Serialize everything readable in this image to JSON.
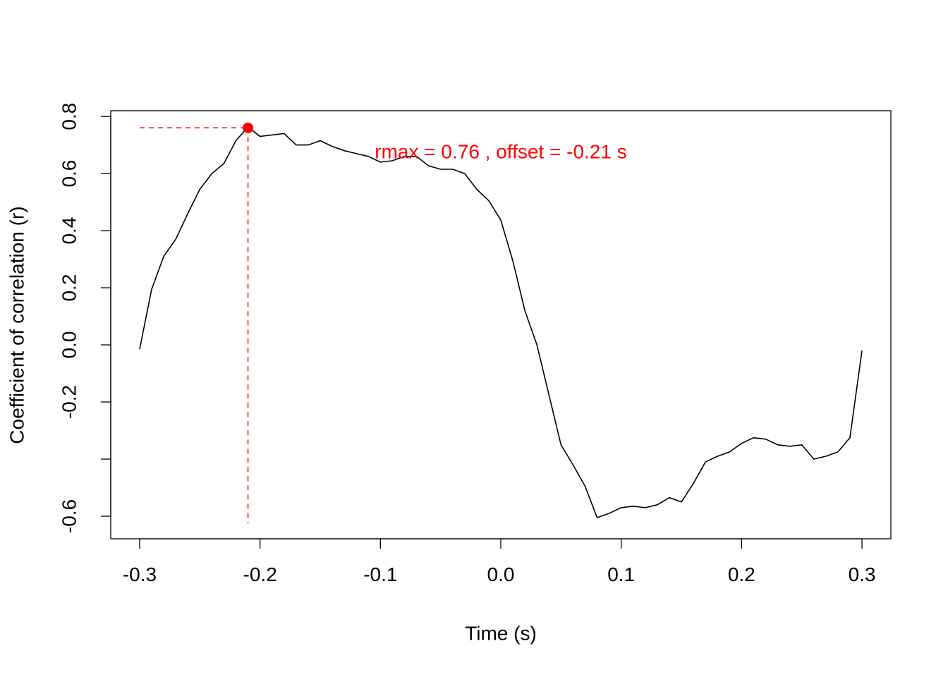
{
  "chart_data": {
    "type": "line",
    "x_label": "Time (s)",
    "y_label": "Coefficient of correlation (r)",
    "annotation": "rmax =  0.76 , offset =  -0.21 s",
    "color": "#000000",
    "highlight_color": "#ff0000",
    "peak": {
      "x": -0.21,
      "y": 0.76
    },
    "x": [
      -0.3,
      -0.29,
      -0.28,
      -0.27,
      -0.26,
      -0.25,
      -0.24,
      -0.23,
      -0.22,
      -0.21,
      -0.2,
      -0.19,
      -0.18,
      -0.17,
      -0.16,
      -0.15,
      -0.14,
      -0.13,
      -0.12,
      -0.11,
      -0.1,
      -0.09,
      -0.08,
      -0.07,
      -0.06,
      -0.05,
      -0.04,
      -0.03,
      -0.02,
      -0.01,
      0.0,
      0.01,
      0.02,
      0.03,
      0.04,
      0.05,
      0.06,
      0.07,
      0.08,
      0.09,
      0.1,
      0.11,
      0.12,
      0.13,
      0.14,
      0.15,
      0.16,
      0.17,
      0.18,
      0.19,
      0.2,
      0.21,
      0.22,
      0.23,
      0.24,
      0.25,
      0.26,
      0.27,
      0.28,
      0.29,
      0.3
    ],
    "values": [
      -0.015,
      0.195,
      0.31,
      0.37,
      0.46,
      0.545,
      0.6,
      0.635,
      0.715,
      0.763,
      0.73,
      0.735,
      0.74,
      0.7,
      0.7,
      0.715,
      0.695,
      0.68,
      0.67,
      0.66,
      0.64,
      0.645,
      0.66,
      0.66,
      0.627,
      0.615,
      0.615,
      0.6,
      0.545,
      0.505,
      0.437,
      0.294,
      0.12,
      0.0,
      -0.175,
      -0.35,
      -0.42,
      -0.495,
      -0.605,
      -0.59,
      -0.57,
      -0.565,
      -0.57,
      -0.56,
      -0.535,
      -0.55,
      -0.485,
      -0.41,
      -0.39,
      -0.375,
      -0.345,
      -0.325,
      -0.33,
      -0.35,
      -0.355,
      -0.35,
      -0.4,
      -0.39,
      -0.375,
      -0.325,
      -0.02
    ],
    "xlim": [
      -0.324,
      0.324
    ],
    "ylim": [
      -0.679,
      0.82
    ],
    "xticks": [
      -0.3,
      -0.2,
      -0.1,
      {
        "value": 0,
        "label": "0.0"
      },
      0.1,
      0.2,
      0.3
    ],
    "yticks": [
      0.8,
      0.6,
      0.4,
      0.2,
      {
        "value": 0,
        "label": "0.0"
      },
      -0.2,
      {
        "value": -0.4,
        "label": null
      },
      -0.6
    ]
  }
}
